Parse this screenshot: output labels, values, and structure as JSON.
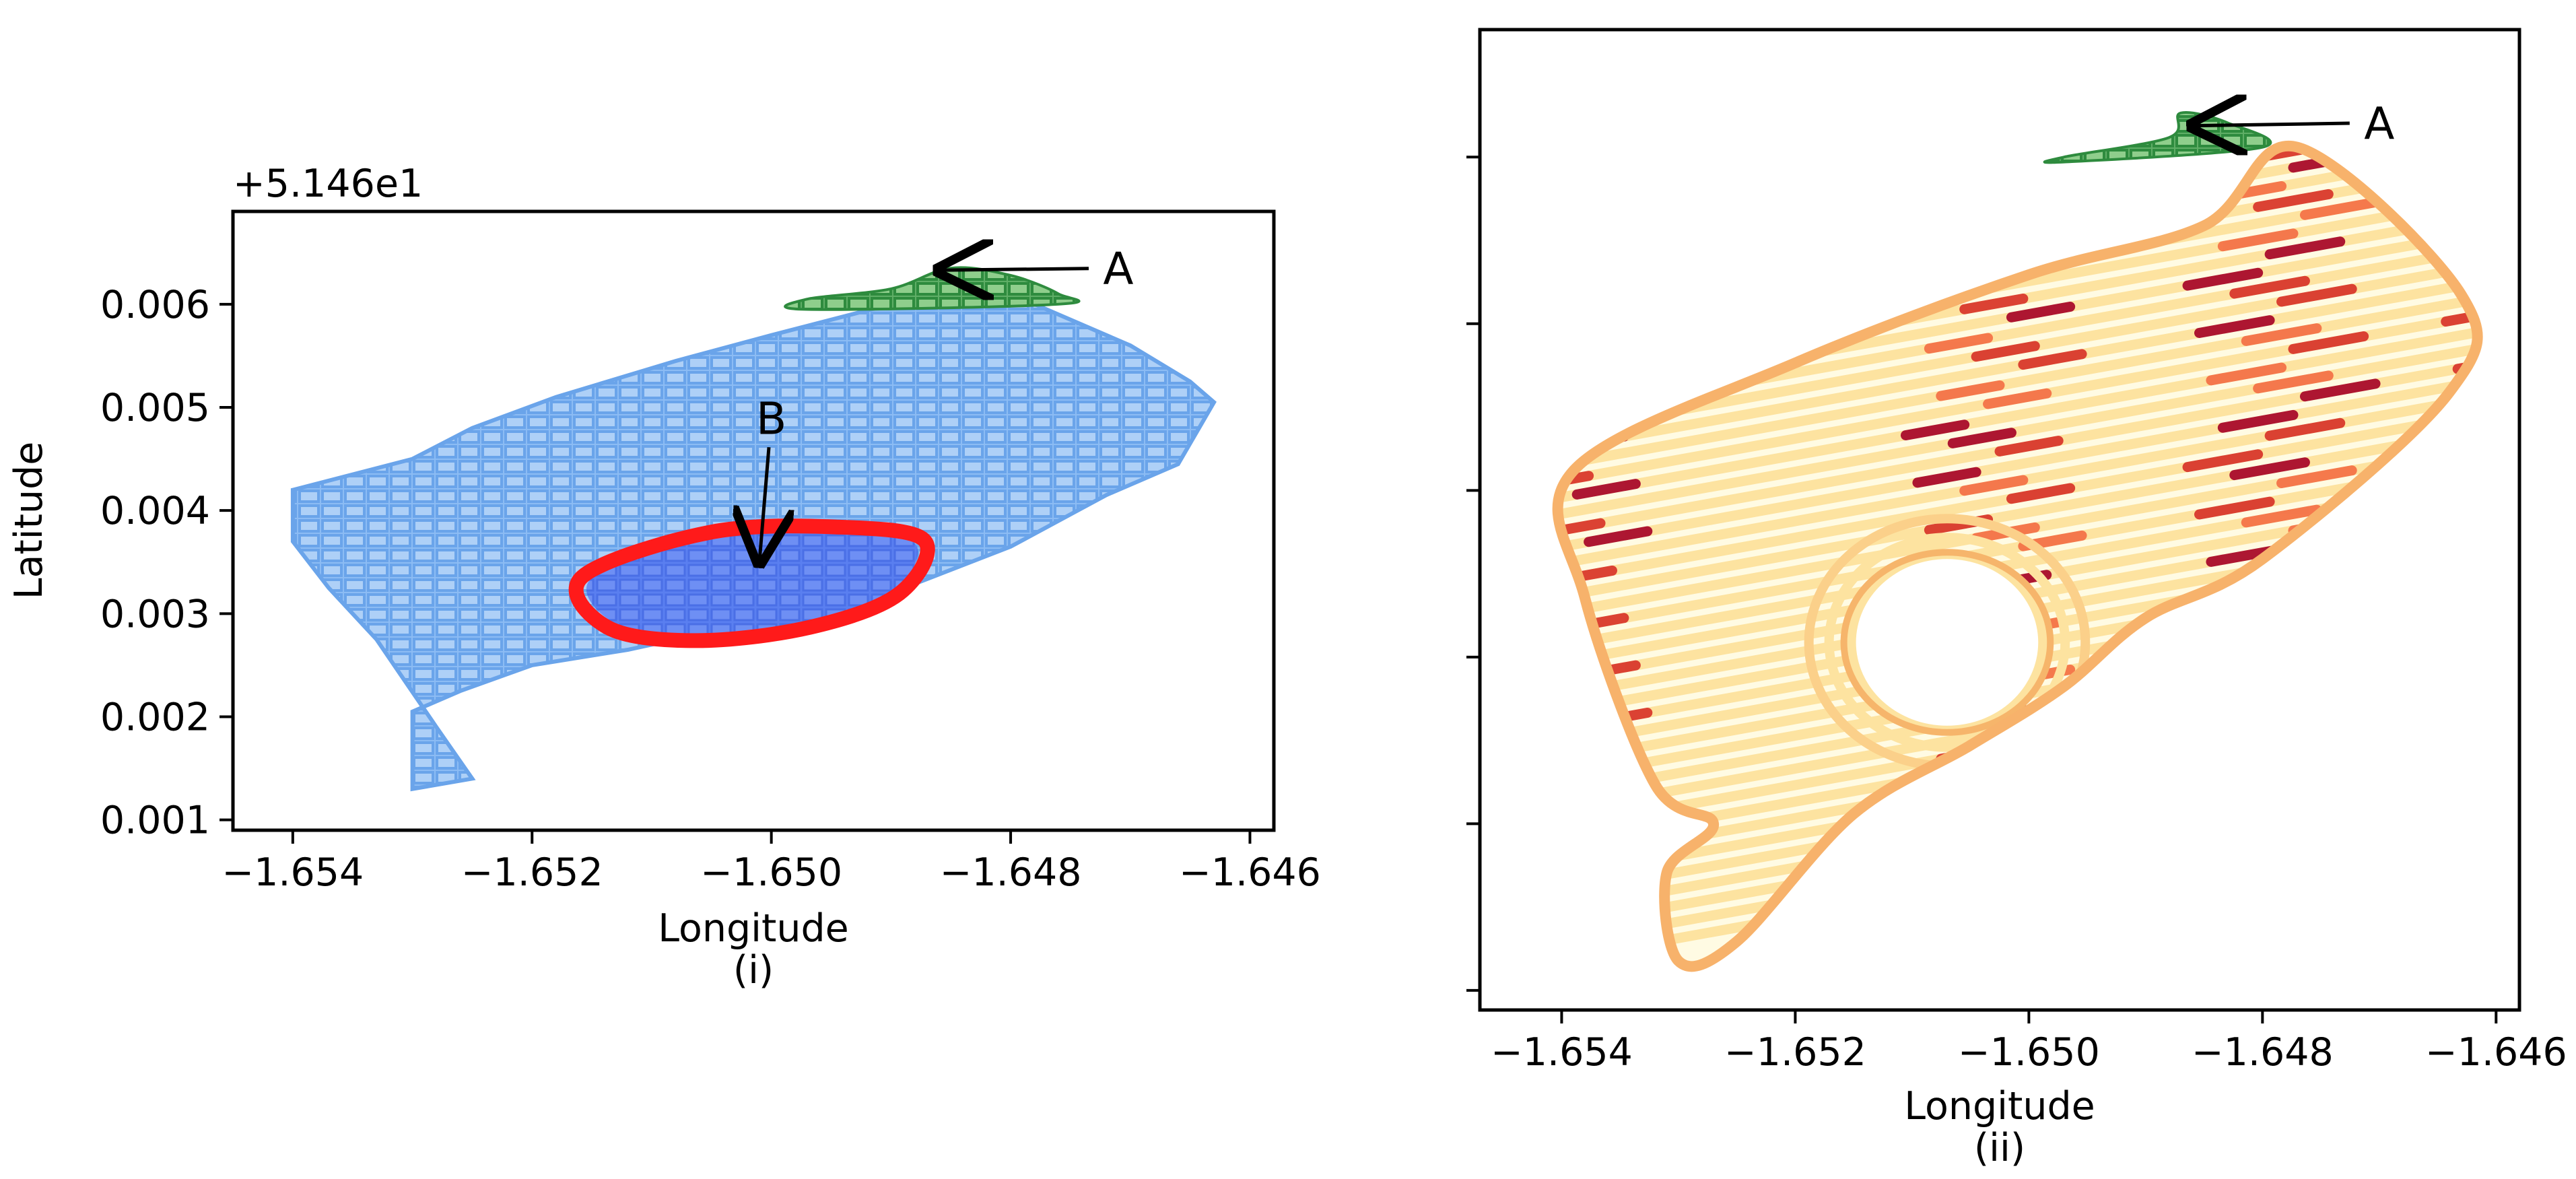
{
  "chart_data": [
    {
      "type": "scatter",
      "panel_label": "(i)",
      "xlabel": "Longitude",
      "ylabel": "Latitude",
      "offset_text": "+5.146e1",
      "xlim": [
        -1.6545,
        -1.6458
      ],
      "ylim": [
        0.0009,
        0.0069
      ],
      "xticks": [
        -1.654,
        -1.652,
        -1.65,
        -1.648,
        -1.646
      ],
      "xtick_labels": [
        "−1.654",
        "−1.652",
        "−1.650",
        "−1.648",
        "−1.646"
      ],
      "yticks": [
        0.001,
        0.002,
        0.003,
        0.004,
        0.005,
        0.006
      ],
      "ytick_labels": [
        "0.001",
        "0.002",
        "0.003",
        "0.004",
        "0.005",
        "0.006"
      ],
      "grid": false,
      "field_outline": [
        [
          -1.654,
          0.0042
        ],
        [
          -1.653,
          0.0045
        ],
        [
          -1.6525,
          0.0048
        ],
        [
          -1.6518,
          0.0051
        ],
        [
          -1.6508,
          0.00545
        ],
        [
          -1.65,
          0.0057
        ],
        [
          -1.649,
          0.006
        ],
        [
          -1.6485,
          0.0063
        ],
        [
          -1.6478,
          0.006
        ],
        [
          -1.647,
          0.0056
        ],
        [
          -1.6465,
          0.00525
        ],
        [
          -1.6463,
          0.00505
        ],
        [
          -1.6466,
          0.00445
        ],
        [
          -1.6472,
          0.00415
        ],
        [
          -1.648,
          0.00365
        ],
        [
          -1.649,
          0.0032
        ],
        [
          -1.6498,
          0.003
        ],
        [
          -1.6504,
          0.00285
        ],
        [
          -1.6512,
          0.00265
        ],
        [
          -1.652,
          0.0025
        ],
        [
          -1.6526,
          0.00225
        ],
        [
          -1.653,
          0.00205
        ],
        [
          -1.653,
          0.0013
        ],
        [
          -1.6525,
          0.0014
        ],
        [
          -1.6528,
          0.0019
        ],
        [
          -1.6533,
          0.00275
        ],
        [
          -1.6537,
          0.00325
        ],
        [
          -1.654,
          0.0037
        ]
      ],
      "regions": [
        {
          "label": "A",
          "color": "#2e8b3e",
          "outline": [
            [
              -1.6497,
              0.00605
            ],
            [
              -1.649,
              0.00615
            ],
            [
              -1.6485,
              0.00635
            ],
            [
              -1.648,
              0.00628
            ],
            [
              -1.6476,
              0.0061
            ],
            [
              -1.6476,
              0.006
            ],
            [
              -1.6497,
              0.00595
            ]
          ]
        },
        {
          "label": "B",
          "color": "#5b7cf0",
          "outline": [
            [
              -1.6515,
              0.00335
            ],
            [
              -1.6505,
              0.00375
            ],
            [
              -1.6495,
              0.0038
            ],
            [
              -1.6488,
              0.00368
            ],
            [
              -1.649,
              0.0032
            ],
            [
              -1.6497,
              0.0029
            ],
            [
              -1.6506,
              0.00278
            ],
            [
              -1.6513,
              0.0029
            ]
          ]
        }
      ],
      "red_outline_color": "#ff1a1a",
      "grid_color": "#87b6ee",
      "annotations": [
        {
          "text": "A",
          "xy": [
            -1.6486,
            0.00633
          ],
          "xytext": [
            -1.6471,
            0.00635
          ]
        },
        {
          "text": "B",
          "xy": [
            -1.6501,
            0.0035
          ],
          "xytext": [
            -1.65,
            0.0049
          ]
        }
      ]
    },
    {
      "type": "scatter",
      "panel_label": "(ii)",
      "xlabel": "Longitude",
      "ylabel": "",
      "xlim": [
        -1.6547,
        -1.6458
      ],
      "ylim": [
        0.0,
        1.0
      ],
      "xticks": [
        -1.654,
        -1.652,
        -1.65,
        -1.648,
        -1.646
      ],
      "xtick_labels": [
        "−1.654",
        "−1.652",
        "−1.650",
        "−1.648",
        "−1.646"
      ],
      "yticks": [
        0.02,
        0.19,
        0.36,
        0.53,
        0.7,
        0.87
      ],
      "ytick_labels": [
        "",
        "",
        "",
        "",
        "",
        ""
      ],
      "grid": false,
      "colormap": [
        "#a50026",
        "#d73027",
        "#f46d43",
        "#fdae61",
        "#fee08b",
        "#ffffbf",
        "#d9ef8b",
        "#66bd63",
        "#1a9850"
      ],
      "field_outline": [
        [
          -1.6539,
          0.55
        ],
        [
          -1.652,
          0.66
        ],
        [
          -1.65,
          0.75
        ],
        [
          -1.6485,
          0.8
        ],
        [
          -1.6477,
          0.88
        ],
        [
          -1.6463,
          0.73
        ],
        [
          -1.6464,
          0.63
        ],
        [
          -1.648,
          0.46
        ],
        [
          -1.649,
          0.4
        ],
        [
          -1.6497,
          0.33
        ],
        [
          -1.6505,
          0.27
        ],
        [
          -1.6515,
          0.2
        ],
        [
          -1.6525,
          0.07
        ],
        [
          -1.653,
          0.05
        ],
        [
          -1.6531,
          0.14
        ],
        [
          -1.6527,
          0.19
        ],
        [
          -1.6532,
          0.23
        ],
        [
          -1.6538,
          0.42
        ]
      ],
      "hole": {
        "center": [
          -1.6507,
          0.375
        ],
        "rx": 0.00078,
        "ry": 0.085
      },
      "region_A": {
        "label": "A",
        "color": "#2e8b3e",
        "outline": [
          [
            -1.6497,
            0.87
          ],
          [
            -1.6488,
            0.89
          ],
          [
            -1.6487,
            0.915
          ],
          [
            -1.6483,
            0.905
          ],
          [
            -1.648,
            0.88
          ],
          [
            -1.6497,
            0.865
          ]
        ]
      },
      "annotations": [
        {
          "text": "A",
          "xy": [
            -1.6486,
            0.902
          ],
          "xytext": [
            -1.647,
            0.905
          ]
        }
      ]
    }
  ]
}
